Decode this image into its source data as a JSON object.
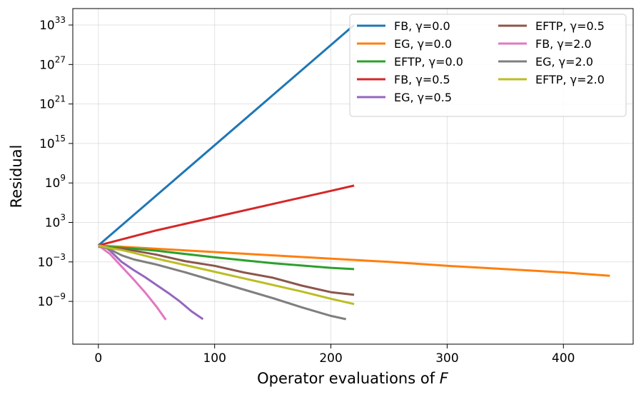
{
  "chart_data": {
    "type": "line",
    "title": "",
    "xlabel": "Operator evaluations of",
    "xlabel_var": "F",
    "ylabel": "Residual",
    "y_scale": "log",
    "xlim": [
      -22,
      460
    ],
    "ylim_log10": [
      -15.5,
      35.5
    ],
    "grid": true,
    "legend_position": "top-right",
    "legend_columns": 2,
    "x_ticks": [
      {
        "value": 0,
        "label": "0"
      },
      {
        "value": 100,
        "label": "100"
      },
      {
        "value": 200,
        "label": "200"
      },
      {
        "value": 300,
        "label": "300"
      },
      {
        "value": 400,
        "label": "400"
      }
    ],
    "y_ticks": [
      {
        "log10": 33,
        "base": "10",
        "exp": "33"
      },
      {
        "log10": 27,
        "base": "10",
        "exp": "27"
      },
      {
        "log10": 21,
        "base": "10",
        "exp": "21"
      },
      {
        "log10": 15,
        "base": "10",
        "exp": "15"
      },
      {
        "log10": 9,
        "base": "10",
        "exp": "9"
      },
      {
        "log10": 3,
        "base": "10",
        "exp": "3"
      },
      {
        "log10": -3,
        "base": "10",
        "exp": "−3"
      },
      {
        "log10": -9,
        "base": "10",
        "exp": "−9"
      }
    ],
    "series": [
      {
        "name": "FB, γ=0.0",
        "color": "#1f77b4",
        "x": [
          0,
          220
        ],
        "log10_y": [
          -0.5,
          33.0
        ]
      },
      {
        "name": "EG, γ=0.0",
        "color": "#ff7f0e",
        "x": [
          0,
          50,
          100,
          150,
          200,
          250,
          300,
          350,
          400,
          440
        ],
        "log10_y": [
          -0.5,
          -1.0,
          -1.5,
          -2.0,
          -2.5,
          -3.0,
          -3.6,
          -4.1,
          -4.6,
          -5.1
        ]
      },
      {
        "name": "EFTP, γ=0.0",
        "color": "#2ca02c",
        "x": [
          0,
          25,
          50,
          100,
          150,
          200,
          220
        ],
        "log10_y": [
          -0.6,
          -0.9,
          -1.3,
          -2.3,
          -3.2,
          -3.9,
          -4.1
        ]
      },
      {
        "name": "FB, γ=0.5",
        "color": "#d62728",
        "x": [
          0,
          50,
          100,
          150,
          200,
          220
        ],
        "log10_y": [
          -0.5,
          1.8,
          3.8,
          5.8,
          7.8,
          8.6
        ]
      },
      {
        "name": "EG, γ=0.5",
        "color": "#9467bd",
        "x": [
          0,
          5,
          10,
          20,
          30,
          40,
          50,
          60,
          70,
          80,
          90
        ],
        "log10_y": [
          -0.5,
          -0.6,
          -1.3,
          -3.0,
          -4.2,
          -5.3,
          -6.5,
          -7.7,
          -9.0,
          -10.5,
          -11.7
        ]
      },
      {
        "name": "EFTP, γ=0.5",
        "color": "#8c564b",
        "x": [
          0,
          25,
          50,
          75,
          100,
          125,
          150,
          175,
          200,
          220
        ],
        "log10_y": [
          -0.7,
          -1.1,
          -1.9,
          -2.9,
          -3.6,
          -4.6,
          -5.4,
          -6.6,
          -7.6,
          -8.0
        ]
      },
      {
        "name": "FB, γ=2.0",
        "color": "#e377c2",
        "x": [
          0,
          10,
          20,
          30,
          40,
          50,
          58
        ],
        "log10_y": [
          -0.5,
          -1.8,
          -3.7,
          -5.6,
          -7.6,
          -9.8,
          -11.8
        ]
      },
      {
        "name": "EG, γ=2.0",
        "color": "#7f7f7f",
        "x": [
          0,
          10,
          20,
          30,
          50,
          75,
          100,
          125,
          150,
          175,
          200,
          213
        ],
        "log10_y": [
          -0.5,
          -1.1,
          -2.0,
          -2.6,
          -3.4,
          -4.6,
          -5.9,
          -7.2,
          -8.5,
          -9.9,
          -11.2,
          -11.7
        ]
      },
      {
        "name": "EFTP, γ=2.0",
        "color": "#bcbd22",
        "x": [
          0,
          10,
          20,
          30,
          50,
          75,
          100,
          125,
          150,
          175,
          200,
          220
        ],
        "log10_y": [
          -0.5,
          -0.9,
          -1.2,
          -1.6,
          -2.5,
          -3.5,
          -4.5,
          -5.5,
          -6.5,
          -7.5,
          -8.6,
          -9.4
        ]
      }
    ]
  }
}
